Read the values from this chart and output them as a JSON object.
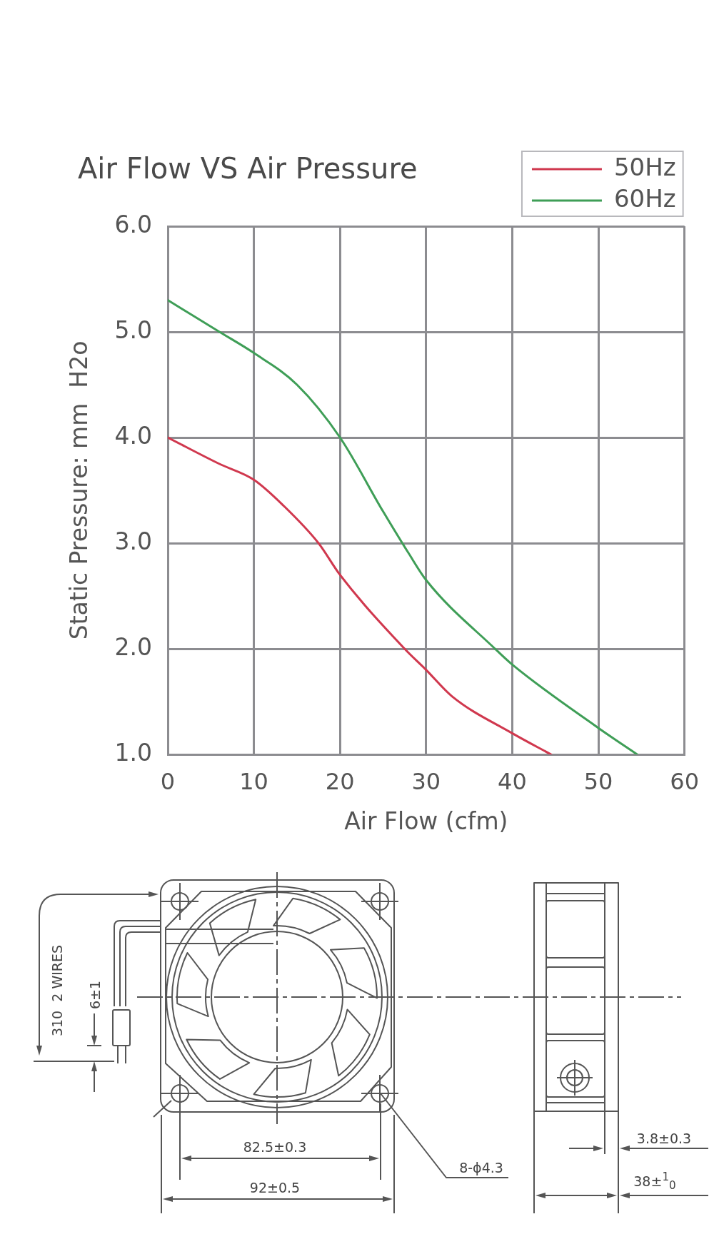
{
  "chart_data": {
    "type": "line",
    "title": "Air Flow VS Air Pressure",
    "xlabel": "Air Flow (cfm)",
    "ylabel": "Static Pressure: mm  H2o",
    "xlim": [
      0,
      60
    ],
    "xticks": [
      0,
      10,
      20,
      30,
      40,
      50,
      60
    ],
    "ylim": [
      1,
      6
    ],
    "yticks": [
      {
        "value": 1,
        "label": "1.0"
      },
      {
        "value": 2,
        "label": "2.0"
      },
      {
        "value": 3,
        "label": "3.0"
      },
      {
        "value": 4,
        "label": "4.0"
      },
      {
        "value": 5,
        "label": "5.0"
      },
      {
        "value": 6,
        "label": "6.0"
      }
    ],
    "grid": true,
    "legend": "top right",
    "series": [
      {
        "name": "50Hz",
        "color": "#d0384e",
        "x": [
          0,
          6,
          10,
          13.5,
          17.5,
          20,
          27.5,
          30,
          33,
          40,
          44.5
        ],
        "values": [
          4.0,
          3.75,
          3.6,
          3.35,
          3.0,
          2.7,
          2.0,
          1.8,
          1.55,
          1.2,
          1.0
        ]
      },
      {
        "name": "60Hz",
        "color": "#3f9e57",
        "x": [
          0,
          6,
          10,
          15,
          20,
          25,
          28,
          30,
          38,
          40,
          50,
          54.5
        ],
        "values": [
          5.3,
          5.0,
          4.8,
          4.5,
          4.0,
          3.3,
          2.9,
          2.65,
          2.0,
          1.85,
          1.25,
          1.0
        ]
      }
    ],
    "annotations": [
      "310  2 WIRES",
      "6±1",
      "82.5±0.3",
      "92±0.5",
      "8-ϕ4.3",
      "3.8±0.3",
      "38±$^{1}$$_{0}$"
    ]
  }
}
